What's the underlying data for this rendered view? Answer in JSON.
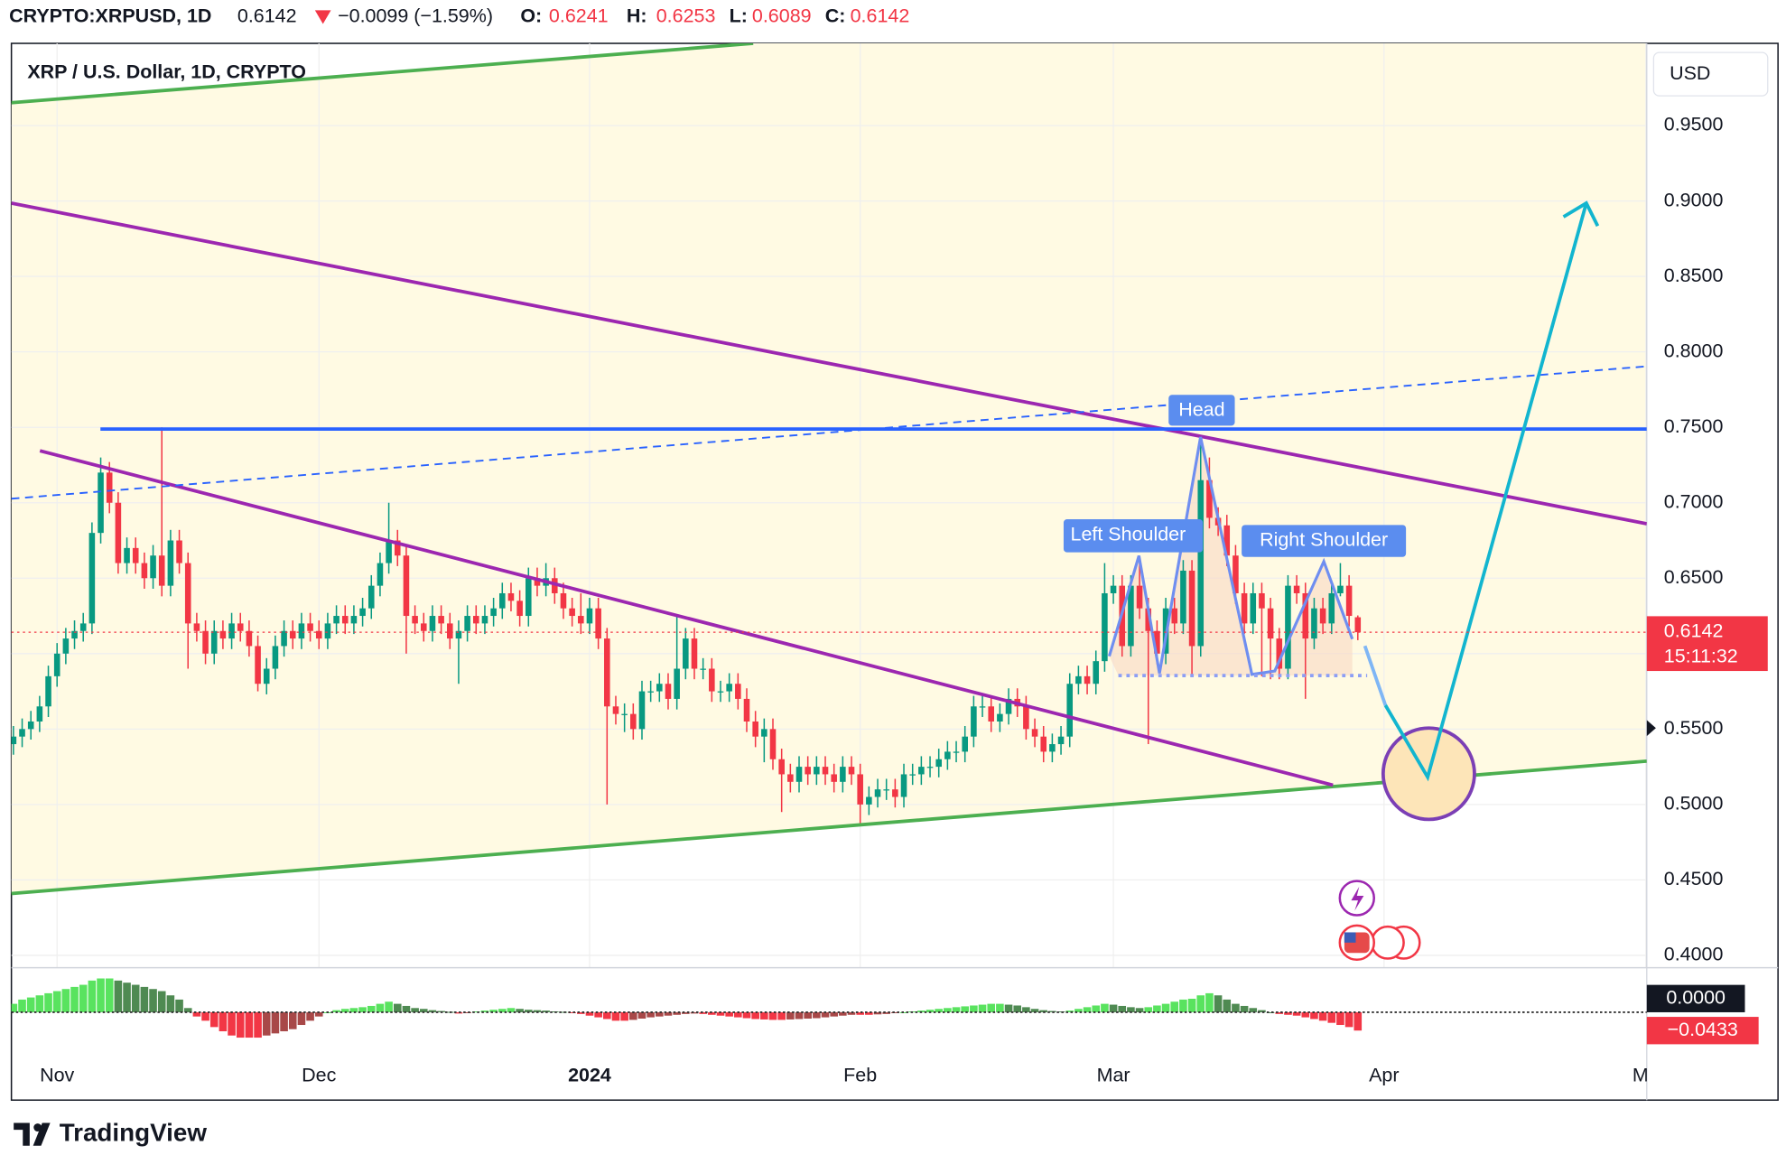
{
  "header": {
    "symbol": "CRYPTO:XRPUSD, 1D",
    "last": 0.6142,
    "change": "−0.0099 (−1.59%)",
    "o_label": "O:",
    "open": 0.6241,
    "h_label": "H:",
    "high": 0.6253,
    "l_label": "L:",
    "low": 0.6089,
    "c_label": "C:",
    "close": 0.6142
  },
  "chart_data": [
    {
      "type": "candlestick",
      "title": "XRP / U.S. Dollar, 1D, CRYPTO",
      "currency": "USD",
      "open": [
        0.54,
        0.545,
        0.55,
        0.555,
        0.565,
        0.585,
        0.6,
        0.61,
        0.615,
        0.62,
        0.68,
        0.72,
        0.7,
        0.66,
        0.67,
        0.66,
        0.65,
        0.665,
        0.645,
        0.675,
        0.66,
        0.62,
        0.615,
        0.6,
        0.615,
        0.61,
        0.62,
        0.615,
        0.605,
        0.58,
        0.59,
        0.605,
        0.615,
        0.61,
        0.62,
        0.615,
        0.61,
        0.62,
        0.625,
        0.62,
        0.625,
        0.63,
        0.645,
        0.66,
        0.675,
        0.665,
        0.625,
        0.62,
        0.615,
        0.625,
        0.62,
        0.61,
        0.615,
        0.625,
        0.62,
        0.625,
        0.63,
        0.64,
        0.635,
        0.625,
        0.65,
        0.645,
        0.65,
        0.64,
        0.63,
        0.625,
        0.62,
        0.63,
        0.61,
        0.565,
        0.56,
        0.56,
        0.55,
        0.575,
        0.575,
        0.58,
        0.57,
        0.59,
        0.61,
        0.59,
        0.59,
        0.575,
        0.575,
        0.58,
        0.57,
        0.555,
        0.545,
        0.55,
        0.53,
        0.52,
        0.515,
        0.525,
        0.52,
        0.525,
        0.52,
        0.515,
        0.525,
        0.52,
        0.5,
        0.505,
        0.51,
        0.51,
        0.505,
        0.52,
        0.52,
        0.525,
        0.525,
        0.53,
        0.535,
        0.535,
        0.545,
        0.565,
        0.565,
        0.555,
        0.56,
        0.57,
        0.565,
        0.55,
        0.545,
        0.535,
        0.54,
        0.545,
        0.58,
        0.585,
        0.58,
        0.595,
        0.64,
        0.645,
        0.605,
        0.645,
        0.63,
        0.615,
        0.6,
        0.63,
        0.62,
        0.655,
        0.605,
        0.715,
        0.69,
        0.685,
        0.665,
        0.64,
        0.62,
        0.64,
        0.63,
        0.61,
        0.59,
        0.645,
        0.64,
        0.61,
        0.63,
        0.62,
        0.64,
        0.645,
        0.6241
      ],
      "high": [
        0.552,
        0.557,
        0.562,
        0.572,
        0.592,
        0.607,
        0.617,
        0.622,
        0.627,
        0.687,
        0.73,
        0.727,
        0.707,
        0.677,
        0.677,
        0.667,
        0.672,
        0.75,
        0.682,
        0.682,
        0.667,
        0.627,
        0.622,
        0.622,
        0.622,
        0.627,
        0.627,
        0.622,
        0.612,
        0.597,
        0.612,
        0.622,
        0.622,
        0.627,
        0.627,
        0.622,
        0.627,
        0.632,
        0.632,
        0.632,
        0.637,
        0.652,
        0.667,
        0.7,
        0.682,
        0.672,
        0.632,
        0.627,
        0.632,
        0.632,
        0.627,
        0.622,
        0.632,
        0.632,
        0.632,
        0.637,
        0.647,
        0.647,
        0.642,
        0.657,
        0.657,
        0.66,
        0.657,
        0.647,
        0.637,
        0.64,
        0.637,
        0.637,
        0.617,
        0.572,
        0.567,
        0.567,
        0.582,
        0.582,
        0.587,
        0.587,
        0.625,
        0.617,
        0.617,
        0.597,
        0.597,
        0.582,
        0.587,
        0.587,
        0.577,
        0.562,
        0.557,
        0.557,
        0.537,
        0.527,
        0.532,
        0.532,
        0.532,
        0.532,
        0.527,
        0.532,
        0.532,
        0.527,
        0.512,
        0.517,
        0.517,
        0.517,
        0.527,
        0.527,
        0.532,
        0.532,
        0.537,
        0.542,
        0.542,
        0.552,
        0.572,
        0.572,
        0.572,
        0.567,
        0.577,
        0.577,
        0.572,
        0.557,
        0.552,
        0.547,
        0.552,
        0.587,
        0.592,
        0.592,
        0.602,
        0.66,
        0.652,
        0.652,
        0.652,
        0.66,
        0.637,
        0.622,
        0.637,
        0.637,
        0.662,
        0.662,
        0.745,
        0.73,
        0.697,
        0.692,
        0.672,
        0.647,
        0.647,
        0.647,
        0.637,
        0.617,
        0.652,
        0.652,
        0.647,
        0.637,
        0.637,
        0.647,
        0.66,
        0.652,
        0.6253
      ],
      "low": [
        0.533,
        0.538,
        0.543,
        0.548,
        0.558,
        0.578,
        0.593,
        0.603,
        0.608,
        0.613,
        0.673,
        0.693,
        0.653,
        0.653,
        0.653,
        0.643,
        0.643,
        0.638,
        0.638,
        0.653,
        0.59,
        0.608,
        0.593,
        0.593,
        0.603,
        0.603,
        0.608,
        0.598,
        0.575,
        0.573,
        0.583,
        0.598,
        0.603,
        0.603,
        0.608,
        0.603,
        0.603,
        0.613,
        0.613,
        0.613,
        0.618,
        0.623,
        0.638,
        0.653,
        0.658,
        0.6,
        0.613,
        0.608,
        0.608,
        0.613,
        0.603,
        0.58,
        0.608,
        0.613,
        0.613,
        0.618,
        0.623,
        0.628,
        0.618,
        0.618,
        0.638,
        0.638,
        0.633,
        0.623,
        0.618,
        0.613,
        0.613,
        0.603,
        0.5,
        0.553,
        0.548,
        0.543,
        0.543,
        0.568,
        0.568,
        0.563,
        0.563,
        0.583,
        0.583,
        0.583,
        0.568,
        0.568,
        0.568,
        0.563,
        0.548,
        0.538,
        0.528,
        0.523,
        0.495,
        0.508,
        0.508,
        0.513,
        0.513,
        0.513,
        0.508,
        0.508,
        0.513,
        0.487,
        0.493,
        0.498,
        0.503,
        0.498,
        0.498,
        0.513,
        0.513,
        0.518,
        0.518,
        0.523,
        0.528,
        0.528,
        0.538,
        0.558,
        0.548,
        0.548,
        0.553,
        0.558,
        0.543,
        0.538,
        0.528,
        0.528,
        0.533,
        0.538,
        0.573,
        0.573,
        0.573,
        0.588,
        0.633,
        0.598,
        0.598,
        0.623,
        0.54,
        0.593,
        0.593,
        0.613,
        0.613,
        0.585,
        0.598,
        0.683,
        0.678,
        0.658,
        0.633,
        0.613,
        0.613,
        0.585,
        0.583,
        0.583,
        0.583,
        0.633,
        0.57,
        0.603,
        0.613,
        0.613,
        0.638,
        0.618,
        0.6089
      ],
      "close": [
        0.545,
        0.55,
        0.555,
        0.565,
        0.585,
        0.6,
        0.61,
        0.615,
        0.62,
        0.68,
        0.72,
        0.7,
        0.66,
        0.67,
        0.66,
        0.65,
        0.665,
        0.645,
        0.675,
        0.66,
        0.62,
        0.615,
        0.6,
        0.615,
        0.61,
        0.62,
        0.615,
        0.605,
        0.58,
        0.59,
        0.605,
        0.615,
        0.61,
        0.62,
        0.615,
        0.61,
        0.62,
        0.625,
        0.62,
        0.625,
        0.63,
        0.645,
        0.66,
        0.675,
        0.665,
        0.625,
        0.62,
        0.615,
        0.625,
        0.62,
        0.61,
        0.615,
        0.625,
        0.62,
        0.625,
        0.63,
        0.64,
        0.635,
        0.625,
        0.65,
        0.645,
        0.65,
        0.64,
        0.63,
        0.625,
        0.62,
        0.63,
        0.61,
        0.565,
        0.56,
        0.56,
        0.55,
        0.575,
        0.575,
        0.58,
        0.57,
        0.59,
        0.61,
        0.59,
        0.59,
        0.575,
        0.575,
        0.58,
        0.57,
        0.555,
        0.545,
        0.55,
        0.53,
        0.52,
        0.515,
        0.525,
        0.52,
        0.525,
        0.52,
        0.515,
        0.525,
        0.52,
        0.5,
        0.505,
        0.51,
        0.51,
        0.505,
        0.52,
        0.52,
        0.525,
        0.525,
        0.53,
        0.535,
        0.535,
        0.545,
        0.565,
        0.565,
        0.555,
        0.56,
        0.57,
        0.565,
        0.55,
        0.545,
        0.535,
        0.54,
        0.545,
        0.58,
        0.585,
        0.58,
        0.595,
        0.64,
        0.645,
        0.605,
        0.645,
        0.63,
        0.615,
        0.6,
        0.63,
        0.62,
        0.655,
        0.605,
        0.715,
        0.69,
        0.685,
        0.665,
        0.64,
        0.62,
        0.64,
        0.63,
        0.61,
        0.59,
        0.645,
        0.64,
        0.61,
        0.63,
        0.62,
        0.64,
        0.645,
        0.625,
        0.6142
      ],
      "xlim": [
        -0.23,
        187.1
      ],
      "xticks": [
        {
          "value": 5,
          "label": "Nov"
        },
        {
          "value": 35,
          "label": "Dec"
        },
        {
          "value": 66,
          "label": "2024"
        },
        {
          "value": 97,
          "label": "Feb"
        },
        {
          "value": 126,
          "label": "Mar"
        },
        {
          "value": 157,
          "label": "Apr"
        },
        {
          "value": 187,
          "label": "Ma"
        }
      ],
      "ylim": [
        0.3918,
        1.0045
      ],
      "yticks": [
        {
          "value": 0.95,
          "label": "0.9500"
        },
        {
          "value": 0.9,
          "label": "0.9000"
        },
        {
          "value": 0.85,
          "label": "0.8500"
        },
        {
          "value": 0.8,
          "label": "0.8000"
        },
        {
          "value": 0.75,
          "label": "0.7500"
        },
        {
          "value": 0.7,
          "label": "0.7000"
        },
        {
          "value": 0.65,
          "label": "0.6500"
        },
        {
          "value": 0.6,
          "label": "0.6000"
        },
        {
          "value": 0.55,
          "label": "0.5500"
        },
        {
          "value": 0.5,
          "label": "0.5000"
        },
        {
          "value": 0.45,
          "label": "0.4500"
        },
        {
          "value": 0.4,
          "label": "0.4000"
        }
      ],
      "grid": true,
      "colors": {
        "up": "#089981",
        "down": "#f23645"
      },
      "last_price": 0.6142,
      "countdown": "15:11:32",
      "annotations": [
        "Head",
        "Left Shoulder",
        "Right Shoulder"
      ]
    },
    {
      "type": "bar",
      "values": [
        0.02,
        0.03,
        0.035,
        0.04,
        0.045,
        0.05,
        0.055,
        0.06,
        0.065,
        0.075,
        0.08,
        0.08,
        0.075,
        0.07,
        0.065,
        0.06,
        0.055,
        0.05,
        0.04,
        0.03,
        0.01,
        -0.01,
        -0.02,
        -0.035,
        -0.045,
        -0.055,
        -0.06,
        -0.06,
        -0.06,
        -0.055,
        -0.05,
        -0.045,
        -0.04,
        -0.03,
        -0.02,
        -0.01,
        0.0,
        0.005,
        0.008,
        0.01,
        0.012,
        0.015,
        0.02,
        0.025,
        0.02,
        0.015,
        0.01,
        0.008,
        0.005,
        0.003,
        0.001,
        -0.003,
        -0.002,
        0.002,
        0.004,
        0.006,
        0.008,
        0.01,
        0.008,
        0.006,
        0.005,
        0.004,
        0.002,
        0.001,
        -0.002,
        -0.004,
        -0.008,
        -0.012,
        -0.016,
        -0.02,
        -0.02,
        -0.018,
        -0.015,
        -0.012,
        -0.01,
        -0.008,
        -0.006,
        -0.004,
        -0.003,
        -0.004,
        -0.006,
        -0.008,
        -0.01,
        -0.012,
        -0.014,
        -0.016,
        -0.017,
        -0.018,
        -0.018,
        -0.017,
        -0.016,
        -0.015,
        -0.014,
        -0.012,
        -0.01,
        -0.008,
        -0.006,
        -0.006,
        -0.006,
        -0.005,
        -0.004,
        -0.002,
        0.0,
        0.002,
        0.004,
        0.006,
        0.008,
        0.01,
        0.012,
        0.014,
        0.016,
        0.018,
        0.02,
        0.02,
        0.018,
        0.016,
        0.012,
        0.008,
        0.005,
        0.003,
        0.002,
        0.004,
        0.008,
        0.012,
        0.016,
        0.02,
        0.018,
        0.015,
        0.012,
        0.01,
        0.012,
        0.016,
        0.02,
        0.025,
        0.03,
        0.032,
        0.04,
        0.045,
        0.04,
        0.03,
        0.02,
        0.015,
        0.01,
        0.005,
        0.0,
        -0.004,
        -0.006,
        -0.008,
        -0.012,
        -0.016,
        -0.02,
        -0.025,
        -0.03,
        -0.035,
        -0.0433
      ],
      "ylim": [
        -0.116,
        0.1
      ],
      "yticks": [
        {
          "value": 0,
          "label": "0.0000"
        }
      ],
      "last_value": {
        "value": -0.0433,
        "label": "−0.0433"
      },
      "colors": [
        "#59e35f",
        "#4f8a52",
        "#a84848",
        "#f23645"
      ]
    }
  ],
  "footer": {
    "brand": "TradingView"
  }
}
